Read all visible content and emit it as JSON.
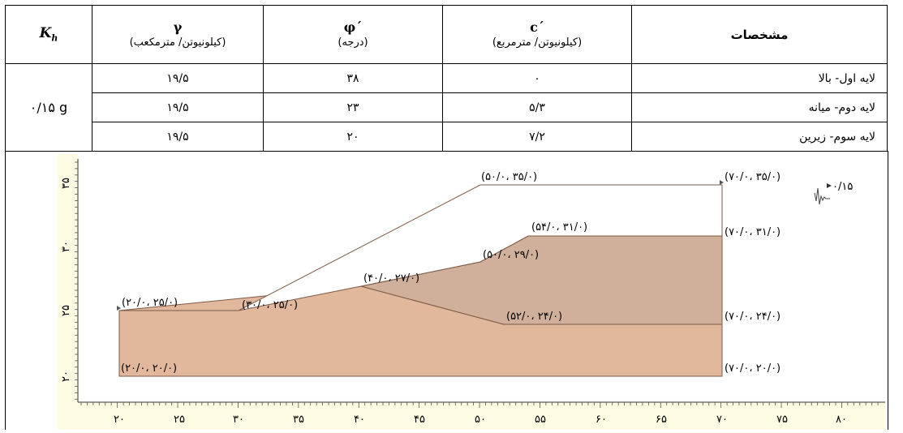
{
  "table": {
    "headers": {
      "kh_symbol": "K",
      "kh_sub": "h",
      "gamma_symbol": "γ",
      "gamma_unit": "(کیلونیوتن/ مترمکعب)",
      "phi_symbol": "φ´",
      "phi_unit": "(درجه)",
      "c_symbol": "c´",
      "c_unit": "(کیلونیوتن/ مترمربع)",
      "properties": "مشخصات"
    },
    "kh_value": "۰/۱۵ g",
    "rows": [
      {
        "gamma": "۱۹/۵",
        "phi": "۳۸",
        "c": "۰",
        "name": "لایه اول- بالا"
      },
      {
        "gamma": "۱۹/۵",
        "phi": "۲۳",
        "c": "۵/۳",
        "name": "لایه دوم- میانه"
      },
      {
        "gamma": "۱۹/۵",
        "phi": "۲۰",
        "c": "۷/۲",
        "name": "لایه سوم- زیرین"
      }
    ]
  },
  "figure": {
    "colors": {
      "top_layer": "#ffffff",
      "middle_layer": "#d0b09a",
      "bottom_layer": "#e2b89d",
      "axis_bg": "#fdfbe2",
      "line": "#7a5a45"
    },
    "x_ticks": [
      "۲۰",
      "۲۵",
      "۳۰",
      "۳۵",
      "۴۰",
      "۴۵",
      "۵۰",
      "۵۵",
      "۶۰",
      "۶۵",
      "۷۰",
      "۷۵",
      "۸۰"
    ],
    "y_ticks": [
      "۲۰",
      "۲۵",
      "۳۰",
      "۳۵"
    ],
    "point_labels": {
      "p1": "(۵۰/۰، ۳۵/۰)",
      "p2": "(۷۰/۰، ۳۵/۰)",
      "p3": "(۵۴/۰، ۳۱/۰)",
      "p4": "(۷۰/۰، ۳۱/۰)",
      "p5": "(۵۰/۰، ۲۹/۰)",
      "p6": "(۴۰/۰، ۲۷/۰)",
      "p7": "(۲۰/۰، ۲۵/۰)",
      "p8": "(۳۰/۰، ۲۵/۰)",
      "p9": "(۵۲/۰، ۲۴/۰)",
      "p10": "(۷۰/۰، ۲۴/۰)",
      "p11": "(۲۰/۰، ۲۰/۰)",
      "p12": "(۷۰/۰، ۲۰/۰)"
    },
    "seismic_label": "۰/۱۵"
  }
}
